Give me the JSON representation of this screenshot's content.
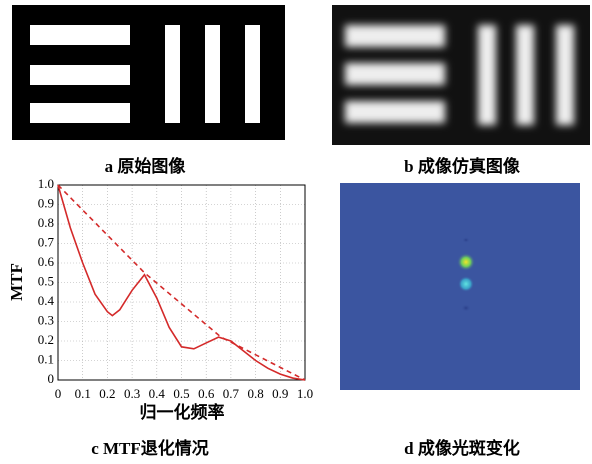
{
  "panels": [
    {
      "caption": "a 原始图像"
    },
    {
      "caption": "b 成像仿真图像"
    },
    {
      "caption": "c MTF退化情况"
    },
    {
      "caption": "d 成像光斑变化"
    }
  ],
  "chart_data": {
    "type": "line",
    "xlabel": "归一化频率",
    "ylabel": "MTF",
    "xlim": [
      0,
      1
    ],
    "ylim": [
      0,
      1
    ],
    "xticks": [
      0,
      0.1,
      0.2,
      0.3,
      0.4,
      0.5,
      0.6,
      0.7,
      0.8,
      0.9,
      {
        "value": 1,
        "label": "1.0"
      }
    ],
    "yticks": [
      0,
      0.1,
      0.2,
      0.3,
      0.4,
      0.5,
      0.6,
      0.7,
      0.8,
      0.9,
      {
        "value": 1,
        "label": "1.0"
      }
    ],
    "grid": true,
    "series": [
      {
        "color": "#d42a2a",
        "dash": false,
        "x": [
          0,
          0.05,
          0.1,
          0.15,
          0.2,
          0.22,
          0.25,
          0.3,
          0.35,
          0.4,
          0.45,
          0.5,
          0.55,
          0.6,
          0.65,
          0.7,
          0.75,
          0.8,
          0.85,
          0.9,
          0.95,
          1
        ],
        "values": [
          1,
          0.78,
          0.6,
          0.44,
          0.35,
          0.33,
          0.36,
          0.46,
          0.54,
          0.42,
          0.27,
          0.17,
          0.16,
          0.19,
          0.22,
          0.2,
          0.15,
          0.1,
          0.06,
          0.03,
          0.01,
          0
        ]
      },
      {
        "color": "#d42a2a",
        "dash": true,
        "x": [
          0,
          0.35,
          0.66,
          1
        ],
        "values": [
          1,
          0.55,
          0.22,
          0
        ]
      }
    ]
  }
}
